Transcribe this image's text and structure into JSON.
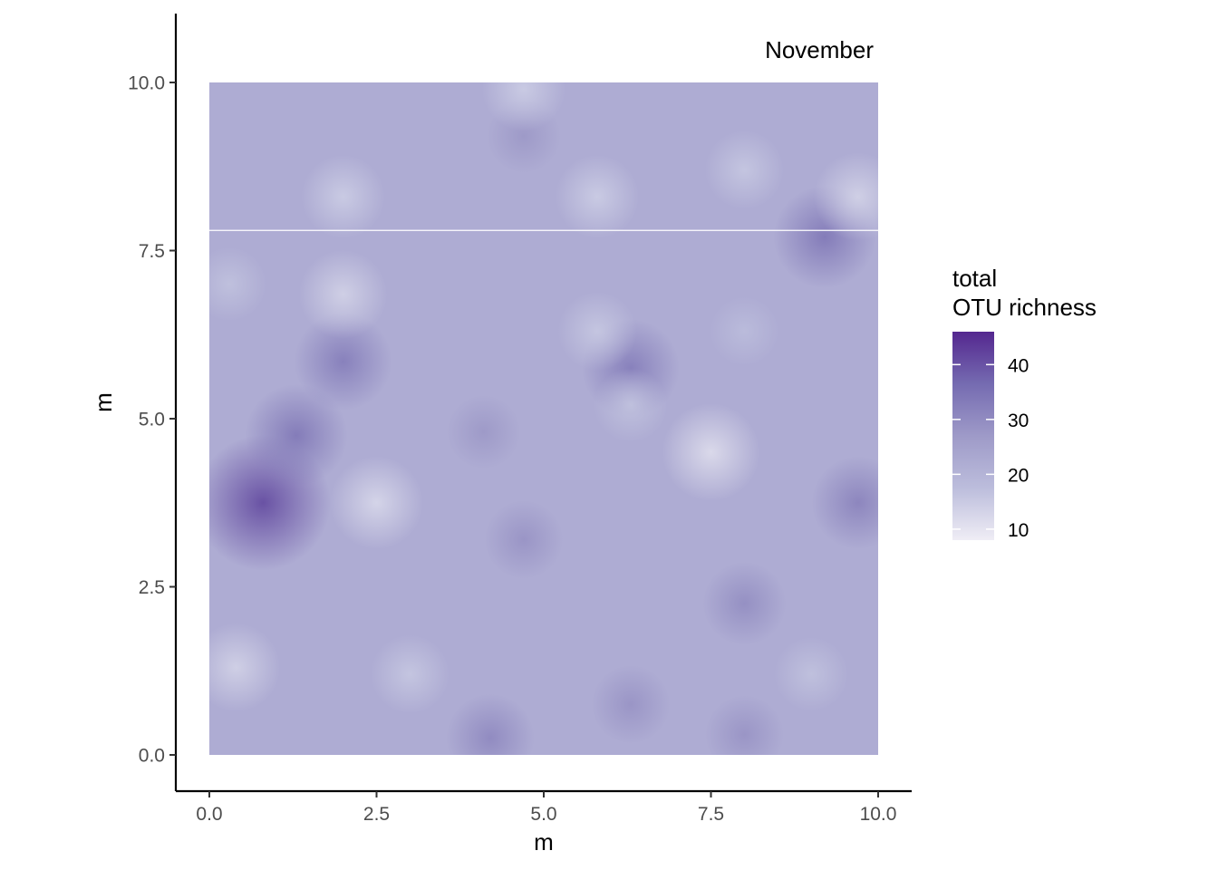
{
  "chart_data": {
    "type": "heatmap",
    "title": "",
    "annotation": "November",
    "xlabel": "m",
    "ylabel": "m",
    "xlim": [
      -0.5,
      10.5
    ],
    "ylim": [
      -0.55,
      11
    ],
    "x_ticks": [
      {
        "value": 0.0,
        "label": "0.0"
      },
      {
        "value": 2.5,
        "label": "2.5"
      },
      {
        "value": 5.0,
        "label": "5.0"
      },
      {
        "value": 7.5,
        "label": "7.5"
      },
      {
        "value": 10.0,
        "label": "10.0"
      }
    ],
    "y_ticks": [
      {
        "value": 0.0,
        "label": "0.0"
      },
      {
        "value": 2.5,
        "label": "2.5"
      },
      {
        "value": 5.0,
        "label": "5.0"
      },
      {
        "value": 7.5,
        "label": "7.5"
      },
      {
        "value": 10.0,
        "label": "10.0"
      }
    ],
    "grid": false,
    "extent": {
      "x": [
        0,
        10
      ],
      "y": [
        0,
        10
      ]
    },
    "background_value": 22,
    "separator_line_y": 7.8,
    "hotspots": [
      {
        "x": 0.8,
        "y": 3.75,
        "value": 40
      },
      {
        "x": 1.3,
        "y": 4.75,
        "value": 33
      },
      {
        "x": 2.0,
        "y": 5.85,
        "value": 32
      },
      {
        "x": 6.3,
        "y": 5.75,
        "value": 32
      },
      {
        "x": 9.2,
        "y": 7.7,
        "value": 33
      },
      {
        "x": 9.7,
        "y": 3.75,
        "value": 31
      },
      {
        "x": 4.2,
        "y": 0.25,
        "value": 30
      },
      {
        "x": 8.0,
        "y": 2.25,
        "value": 29
      },
      {
        "x": 4.7,
        "y": 3.2,
        "value": 28
      },
      {
        "x": 6.3,
        "y": 0.75,
        "value": 28
      },
      {
        "x": 8.0,
        "y": 0.3,
        "value": 28
      },
      {
        "x": 4.1,
        "y": 4.8,
        "value": 27
      },
      {
        "x": 4.7,
        "y": 9.2,
        "value": 27
      },
      {
        "x": 2.5,
        "y": 3.75,
        "value": 13
      },
      {
        "x": 7.5,
        "y": 4.5,
        "value": 12
      },
      {
        "x": 2.0,
        "y": 6.85,
        "value": 14
      },
      {
        "x": 2.0,
        "y": 8.3,
        "value": 15
      },
      {
        "x": 5.8,
        "y": 8.3,
        "value": 15
      },
      {
        "x": 9.7,
        "y": 8.3,
        "value": 14
      },
      {
        "x": 8.0,
        "y": 8.7,
        "value": 16
      },
      {
        "x": 0.4,
        "y": 1.3,
        "value": 14
      },
      {
        "x": 3.0,
        "y": 1.2,
        "value": 16
      },
      {
        "x": 5.8,
        "y": 6.3,
        "value": 16
      },
      {
        "x": 6.3,
        "y": 5.2,
        "value": 17
      },
      {
        "x": 4.7,
        "y": 9.9,
        "value": 15
      },
      {
        "x": 0.3,
        "y": 7.0,
        "value": 17
      },
      {
        "x": 9.0,
        "y": 1.2,
        "value": 17
      },
      {
        "x": 8.0,
        "y": 6.3,
        "value": 18
      }
    ],
    "legend": {
      "title": [
        "total",
        "OTU richness"
      ],
      "position": "right",
      "min": 8,
      "max": 46,
      "ticks": [
        {
          "value": 40,
          "label": "40"
        },
        {
          "value": 30,
          "label": "30"
        },
        {
          "value": 20,
          "label": "20"
        },
        {
          "value": 10,
          "label": "10"
        }
      ],
      "colors": [
        "#efedf5",
        "#bcbddc",
        "#9e9ac8",
        "#756bb1",
        "#54278f"
      ]
    }
  }
}
